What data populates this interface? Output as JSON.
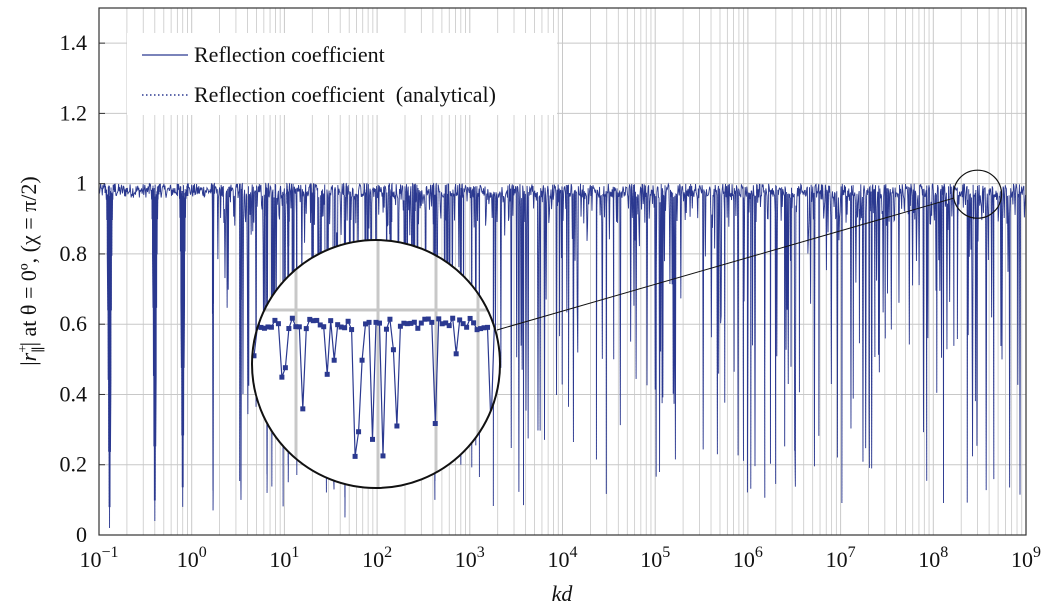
{
  "chart_data": {
    "type": "line",
    "xlabel": "kd",
    "ylabel": "|r∥+| at θ = 0º, (χ = π/2)",
    "x_scale": "log",
    "xlim": [
      0.1,
      1000000000
    ],
    "ylim": [
      0,
      1.5
    ],
    "x_ticks": [
      {
        "exp": "−1"
      },
      {
        "exp": "0"
      },
      {
        "exp": "1"
      },
      {
        "exp": "2"
      },
      {
        "exp": "3"
      },
      {
        "exp": "4"
      },
      {
        "exp": "5"
      },
      {
        "exp": "6"
      },
      {
        "exp": "7"
      },
      {
        "exp": "8"
      },
      {
        "exp": "9"
      }
    ],
    "y_ticks": [
      "0",
      "0.2",
      "0.4",
      "0.6",
      "0.8",
      "1",
      "1.2",
      "1.4"
    ],
    "y_tick_values": [
      0,
      0.2,
      0.4,
      0.6,
      0.8,
      1.0,
      1.2,
      1.4
    ],
    "grid": true,
    "legend_position": "top-left",
    "series": [
      {
        "name": "Reflection coefficient",
        "style": "solid",
        "color": "#2b3990",
        "description_points": {
          "envelope_max": 1.0,
          "resonance_dips_kd": [
            0.13,
            0.4,
            0.8,
            1.7,
            3.4,
            6.5,
            11,
            20,
            45,
            75,
            140,
            250,
            420,
            800
          ],
          "resonance_dip_minimum": [
            0.02,
            0.04,
            0.08,
            0.07,
            0.1,
            0.12,
            0.15,
            0.2,
            0.05,
            0.15,
            0.15,
            0.22,
            0.1,
            0.2
          ]
        }
      },
      {
        "name": "Reflection coefficient  (analytical)",
        "style": "dotted",
        "color": "#2b3990"
      }
    ],
    "inset": {
      "zoom_center_kd": 300000000,
      "zoom_center_value": 0.97
    }
  },
  "colors": {
    "line": "#2b3990",
    "grid": "#c8c8c8",
    "axis": "#333333"
  }
}
